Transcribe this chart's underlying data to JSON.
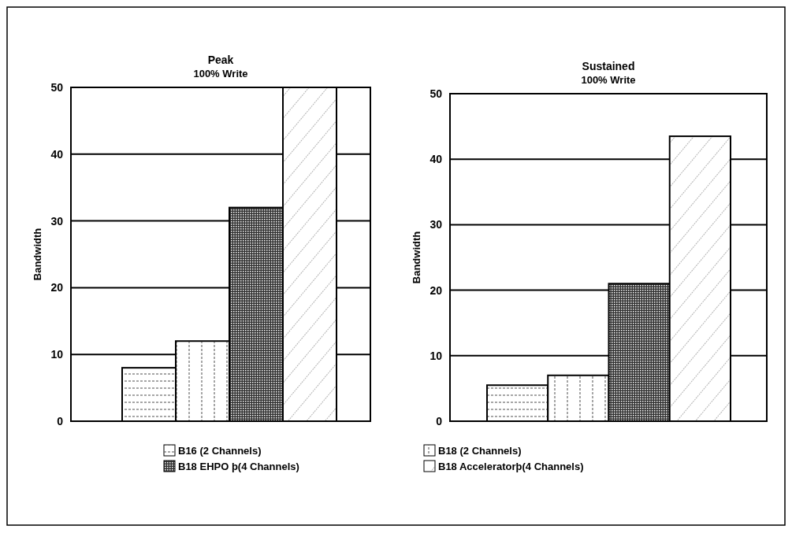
{
  "chart_data": [
    {
      "type": "bar",
      "title": "Peak",
      "subtitle": "100% Write",
      "ylabel": "Bandwidth",
      "categories": [
        null
      ],
      "ylim": [
        0,
        50
      ],
      "yticks": [
        0,
        10,
        20,
        30,
        40,
        50
      ],
      "grid": "y",
      "legend": "bottom",
      "series": [
        {
          "name": "B16 (2 Channels)",
          "color": "#ffffff",
          "values": [
            8
          ]
        },
        {
          "name": "B18 (2 Channels)",
          "color": "#ffffff",
          "values": [
            12
          ]
        },
        {
          "name": "B18 EHPO þ(4 Channels)",
          "color": "#333333",
          "values": [
            32
          ]
        },
        {
          "name": "B18 Acceleratorþ(4 Channels)",
          "color": "#ffffff",
          "values": [
            50
          ]
        }
      ]
    },
    {
      "type": "bar",
      "title": "Sustained",
      "subtitle": "100% Write",
      "ylabel": "Bandwidth",
      "categories": [
        null
      ],
      "ylim": [
        0,
        50
      ],
      "yticks": [
        0,
        10,
        20,
        30,
        40,
        50
      ],
      "grid": "y",
      "series": [
        {
          "color": "#ffffff",
          "values": [
            5.5
          ]
        },
        {
          "color": "#ffffff",
          "values": [
            7
          ]
        },
        {
          "color": "#333333",
          "values": [
            21
          ]
        },
        {
          "color": "#ffffff",
          "values": [
            43.5
          ]
        }
      ]
    }
  ]
}
